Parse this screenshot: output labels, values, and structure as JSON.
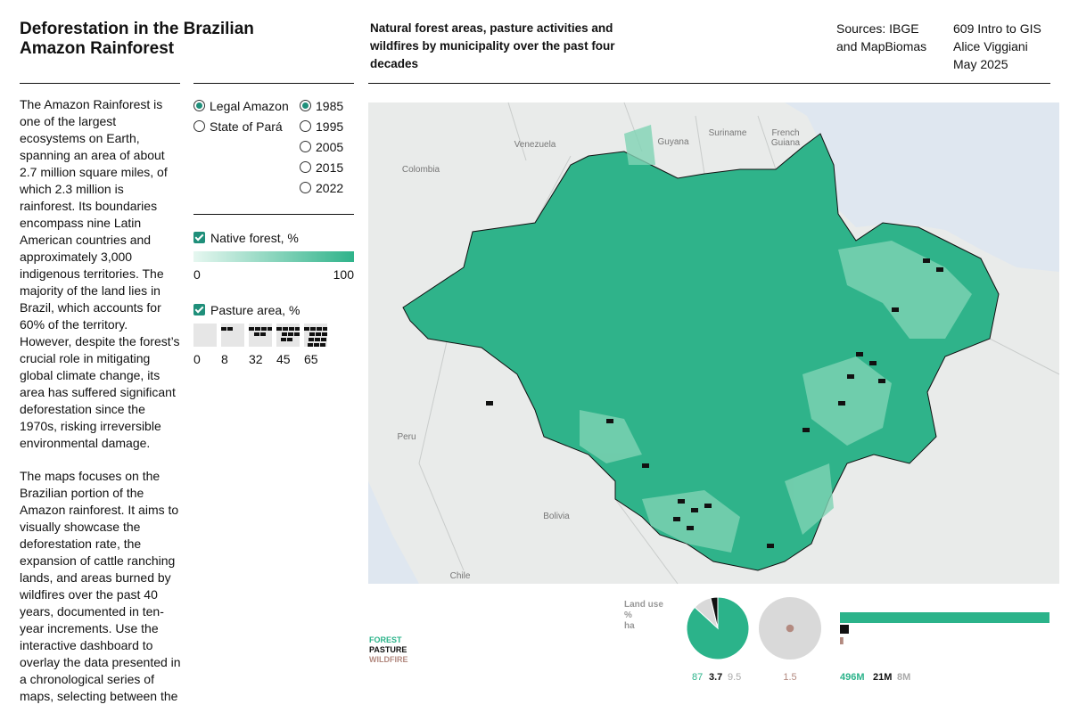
{
  "header": {
    "title": "Deforestation in the Brazilian Amazon Rainforest",
    "subtitle": "Natural forest areas, pasture activities and wildfires by municipality over the past four decades",
    "sources": "Sources: IBGE and MapBiomas",
    "course": "609 Intro to GIS",
    "author": "Alice Viggiani",
    "date": "May 2025"
  },
  "intro": [
    "The Amazon Rainforest is one of the largest ecosystems on Earth, spanning an area of about 2.7 million square miles, of which 2.3 million is rainforest. Its boundaries encompass nine Latin American countries and approximately 3,000 indigenous territories. The majority of the land lies in Brazil, which accounts for 60% of the territory. However, despite the forest’s crucial role in mitigating global climate change, its area has suffered significant deforestation since the 1970s, risking irreversible environmental damage.",
    "The maps focuses on the Brazilian portion of the Amazon rainforest.  It aims to visually showcase the deforestation rate, the expansion of cattle ranching lands, and areas burned by wildfires over the past 40 years, documented in ten-year increments. Use the interactive dashboard to overlay the data presented in a chronological series of maps, selecting between the"
  ],
  "controls": {
    "regions": [
      {
        "label": "Legal Amazon",
        "selected": true
      },
      {
        "label": "State of Pará",
        "selected": false
      }
    ],
    "years": [
      {
        "label": "1985",
        "selected": true
      },
      {
        "label": "1995",
        "selected": false
      },
      {
        "label": "2005",
        "selected": false
      },
      {
        "label": "2015",
        "selected": false
      },
      {
        "label": "2022",
        "selected": false
      }
    ],
    "forest_layer": {
      "label": "Native forest, %",
      "checked": true,
      "min": 0,
      "max": 100
    },
    "pasture_layer": {
      "label": "Pasture area, %",
      "checked": true,
      "steps": [
        0,
        8,
        32,
        45,
        65
      ]
    }
  },
  "map": {
    "labels": [
      "Venezuela",
      "Guyana",
      "Suriname",
      "French Guiana",
      "Colombia",
      "Peru",
      "Bolivia",
      "Chile"
    ]
  },
  "summary": {
    "units": [
      "Land use",
      "%",
      "ha"
    ],
    "legend": [
      {
        "name": "FOREST",
        "color": "#2bb38a"
      },
      {
        "name": "PASTURE",
        "color": "#111111"
      },
      {
        "name": "WILDFIRE",
        "color": "#b38a80"
      }
    ],
    "share_percent": [
      87,
      3.7,
      9.5
    ],
    "other_color": "#d9d9d9",
    "wildfire_percent": 1.5,
    "hectares": {
      "values": [
        496000000,
        21000000,
        8000000
      ],
      "value_labels": [
        "496M",
        "21M",
        "8M"
      ]
    }
  }
}
